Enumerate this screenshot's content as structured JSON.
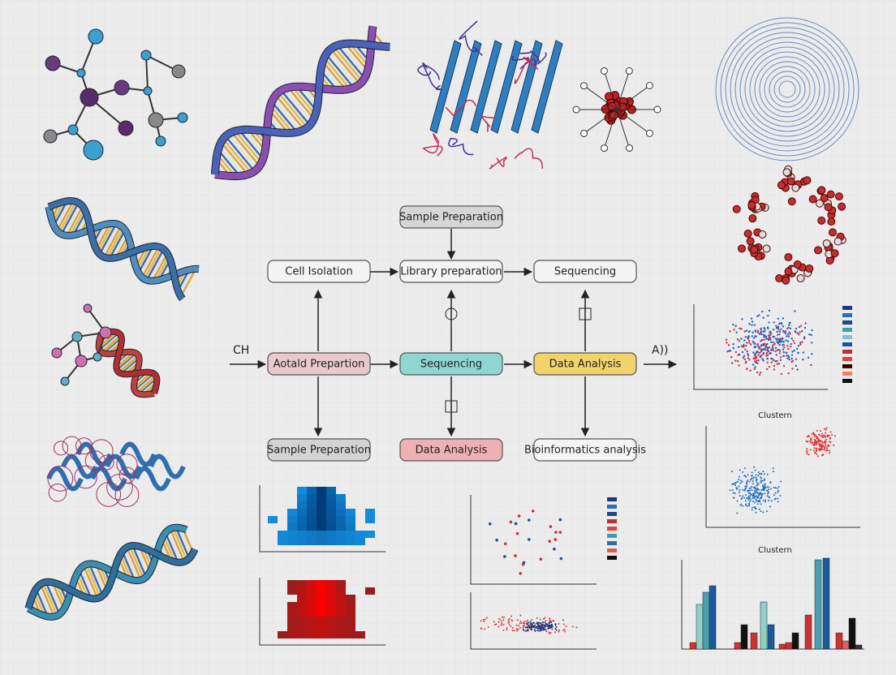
{
  "nodes": [
    {
      "label": "Sample Preparation"
    },
    {
      "label": "Cell Isolation"
    },
    {
      "label": "Library preparation"
    },
    {
      "label": "Sequencing"
    },
    {
      "label": "Aotald Prepartion"
    },
    {
      "label": "Sequencing"
    },
    {
      "label": "Data Analysis"
    },
    {
      "label": "Sample Preparation"
    },
    {
      "label": "Data Analysis"
    },
    {
      "label": "Bioinformatics analysis"
    }
  ],
  "side_labels": [
    "CH",
    "A))"
  ],
  "chart_titles": [
    "Clustern",
    "Clustern"
  ]
}
